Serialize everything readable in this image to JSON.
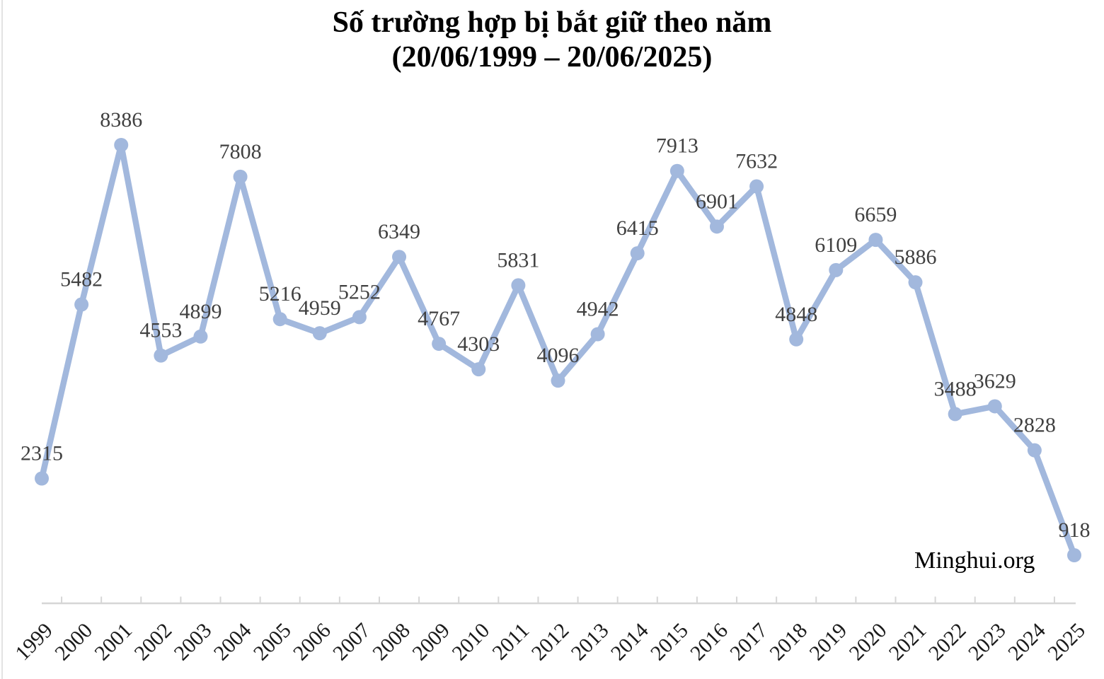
{
  "title": {
    "lines": [
      "Số trường hợp bị bắt giữ theo năm",
      "(20/06/1999 – 20/06/2025)"
    ]
  },
  "watermark": "Minghui.org",
  "chart_data": {
    "type": "line",
    "title": "Số trường hợp bị bắt giữ theo năm (20/06/1999 – 20/06/2025)",
    "xlabel": "",
    "ylabel": "",
    "categories": [
      "1999",
      "2000",
      "2001",
      "2002",
      "2003",
      "2004",
      "2005",
      "2006",
      "2007",
      "2008",
      "2009",
      "2010",
      "2011",
      "2012",
      "2013",
      "2014",
      "2015",
      "2016",
      "2017",
      "2018",
      "2019",
      "2020",
      "2021",
      "2022",
      "2023",
      "2024",
      "2025"
    ],
    "values": [
      2315,
      5482,
      8386,
      4553,
      4899,
      7808,
      5216,
      4959,
      5252,
      6349,
      4767,
      4303,
      5831,
      4096,
      4942,
      6415,
      7913,
      6901,
      7632,
      4848,
      6109,
      6659,
      5886,
      3488,
      3629,
      2828,
      918
    ],
    "data_labels": true,
    "ylim": [
      0,
      9000
    ],
    "grid": false,
    "legend": false,
    "x_tick_rotation": -45,
    "line_color": "#A2B8DD",
    "marker_color": "#A2B8DD",
    "data_label_color": "#404040",
    "axis_color": "#D6D6D6",
    "tick_label_color": "#1A1A1A"
  }
}
